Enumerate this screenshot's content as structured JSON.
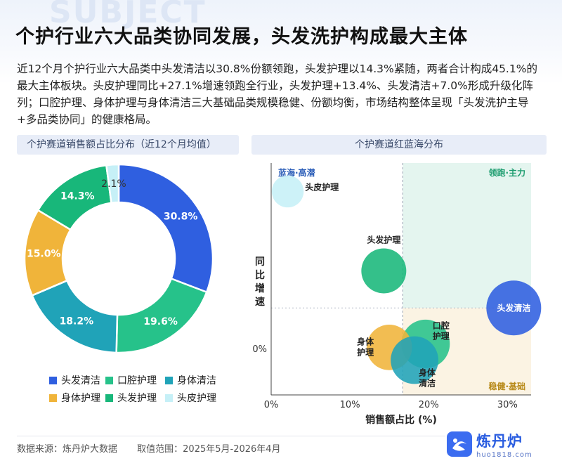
{
  "page": {
    "watermark": "SUBJECT",
    "title": "个护行业六大品类协同发展，头发洗护构成最大主体",
    "summary": "近12个月个护行业六大品类中头发清洁以30.8%份额领跑，头发护理以14.3%紧随，两者合计构成45.1%的最大主体板块。头皮护理同比+27.1%增速领跑全行业，头发护理+13.4%、头发清洁+7.0%形成升级化阵列；口腔护理、身体护理与身体清洁三大基础品类规模稳健、份额均衡，市场结构整体呈现「头发洗护主导+多品类协同」的健康格局。",
    "left_panel_title": "个护赛道销售额占比分布（近12个月均值）",
    "right_panel_title": "个护赛道红蓝海分布",
    "footer": {
      "source": "数据来源：炼丹炉大数据",
      "range": "取值范围：2025年5月-2026年4月"
    },
    "logo": {
      "name": "炼丹炉",
      "url": "huo1818.com",
      "icon": "furnace-logo-icon"
    }
  },
  "chart_data": [
    {
      "type": "pie",
      "variant": "donut",
      "title": "个护赛道销售额占比分布（近12个月均值）",
      "slices": [
        {
          "name": "头发清洁",
          "value": 30.8,
          "label": "30.8%",
          "color": "#2f5fe0"
        },
        {
          "name": "口腔护理",
          "value": 19.6,
          "label": "19.6%",
          "color": "#26c28a"
        },
        {
          "name": "身体清洁",
          "value": 18.2,
          "label": "18.2%",
          "color": "#20a3b8"
        },
        {
          "name": "身体护理",
          "value": 15.0,
          "label": "15.0%",
          "color": "#f0b43a"
        },
        {
          "name": "头发护理",
          "value": 14.3,
          "label": "14.3%",
          "color": "#18b77a"
        },
        {
          "name": "头皮护理",
          "value": 2.1,
          "label": "2.1%",
          "color": "#c6f0f7"
        }
      ],
      "legend_position": "bottom"
    },
    {
      "type": "scatter",
      "variant": "bubble",
      "title": "个护赛道红蓝海分布",
      "xlabel": "销售额占比 (%)",
      "ylabel": "同比增速",
      "x_ticks": [
        "0%",
        "10%",
        "20%",
        "30%"
      ],
      "y_ticks": [
        "0%"
      ],
      "xlim": [
        0,
        33
      ],
      "ylim": [
        -8,
        32
      ],
      "divider_x": 16.7,
      "divider_y": 7.0,
      "quadrants": [
        {
          "label": "蓝海·高潜",
          "position": "top-left",
          "color": "#2a5db8"
        },
        {
          "label": "领跑·主力",
          "position": "top-right",
          "color": "#1b9c6e",
          "fill": "#e4f5ef"
        },
        {
          "label": "稳健·基础",
          "position": "bottom-right",
          "color": "#b88a1a",
          "fill": "#fbf3e3"
        }
      ],
      "points": [
        {
          "name": "头皮护理",
          "x": 2.1,
          "y": 27.1,
          "size": 2.1,
          "color": "#c6f0f7",
          "label_pos": "right"
        },
        {
          "name": "头发护理",
          "x": 14.3,
          "y": 13.4,
          "size": 14.3,
          "color": "#18b77a",
          "label_pos": "top"
        },
        {
          "name": "头发清洁",
          "x": 30.8,
          "y": 7.0,
          "size": 30.8,
          "color": "#2f5fe0",
          "label_pos": "inside"
        },
        {
          "name": "口腔护理",
          "x": 19.6,
          "y": 0.8,
          "size": 19.6,
          "color": "#26c28a",
          "label_pos": "top-right"
        },
        {
          "name": "身体护理",
          "x": 15.0,
          "y": 0.2,
          "size": 15.0,
          "color": "#f0b43a",
          "label_pos": "left"
        },
        {
          "name": "身体清洁",
          "x": 18.2,
          "y": -2.0,
          "size": 18.2,
          "color": "#20a3b8",
          "label_pos": "bottom-right"
        }
      ]
    }
  ]
}
